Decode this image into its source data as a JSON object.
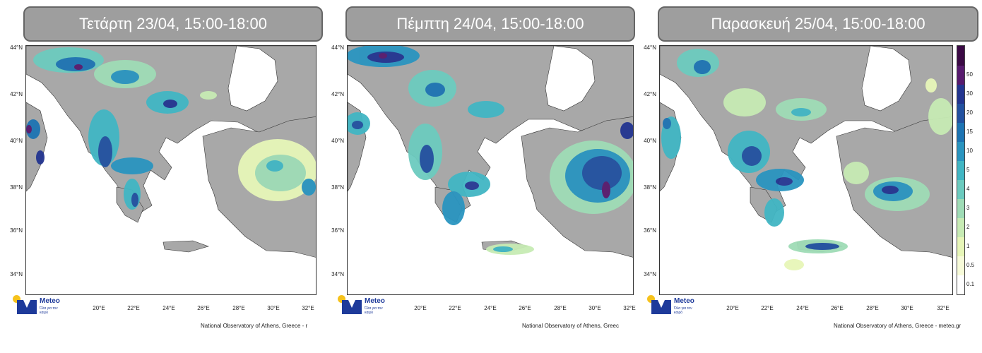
{
  "panels": [
    {
      "title": "Τετάρτη 23/04, 15:00-18:00",
      "credit": "National Observatory of Athens, Greece - r"
    },
    {
      "title": "Πέμπτη 24/04, 15:00-18:00",
      "credit": "National Observatory of Athens, Greec"
    },
    {
      "title": "Παρασκευή 25/04, 15:00-18:00",
      "credit": "National Observatory of Athens, Greece - meteo.gr"
    }
  ],
  "lat_labels": [
    "44°N",
    "42°N",
    "40°N",
    "38°N",
    "36°N",
    "34°N"
  ],
  "lon_labels": [
    "20°E",
    "22°E",
    "24°E",
    "26°E",
    "28°E",
    "30°E",
    "32°E"
  ],
  "logo": {
    "name": "Meteo",
    "tagline": "Όλα για τον καιρό"
  },
  "colorbar": {
    "levels": [
      "0.1",
      "0.5",
      "1",
      "2",
      "3",
      "4",
      "5",
      "10",
      "15",
      "20",
      "30",
      "50"
    ],
    "colors": [
      "#ffffff",
      "#f7fbd9",
      "#e7f6b8",
      "#c7ebb4",
      "#9fdcb6",
      "#6ccbbf",
      "#41b6c4",
      "#2a95c0",
      "#1d74b3",
      "#2251a0",
      "#233590",
      "#571a6e",
      "#3b0a45"
    ]
  },
  "colors": {
    "land": "#a8a8a8",
    "sea": "#ffffff",
    "title_bg": "#9e9e9e",
    "brand": "#1e3a9a"
  }
}
